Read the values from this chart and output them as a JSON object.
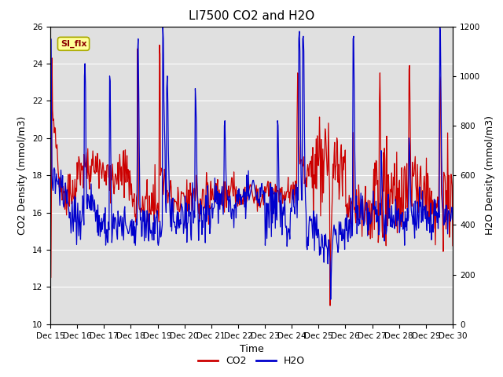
{
  "title": "LI7500 CO2 and H2O",
  "xlabel": "Time",
  "ylabel_left": "CO2 Density (mmol/m3)",
  "ylabel_right": "H2O Density (mmol/m3)",
  "ylim_left": [
    10,
    26
  ],
  "ylim_right": [
    0,
    1200
  ],
  "yticks_left": [
    10,
    12,
    14,
    16,
    18,
    20,
    22,
    24,
    26
  ],
  "yticks_right": [
    0,
    200,
    400,
    600,
    800,
    1000,
    1200
  ],
  "xtick_labels": [
    "Dec 15",
    "Dec 16",
    "Dec 17",
    "Dec 18",
    "Dec 19",
    "Dec 20",
    "Dec 21",
    "Dec 22",
    "Dec 23",
    "Dec 24",
    "Dec 25",
    "Dec 26",
    "Dec 27",
    "Dec 28",
    "Dec 29",
    "Dec 30"
  ],
  "co2_color": "#cc0000",
  "h2o_color": "#0000cc",
  "background_color": "#e0e0e0",
  "annotation_text": "SI_flx",
  "annotation_bg": "#ffff99",
  "annotation_border": "#aaaa00",
  "legend_co2": "CO2",
  "legend_h2o": "H2O",
  "title_fontsize": 11,
  "axis_fontsize": 9,
  "tick_fontsize": 7.5
}
